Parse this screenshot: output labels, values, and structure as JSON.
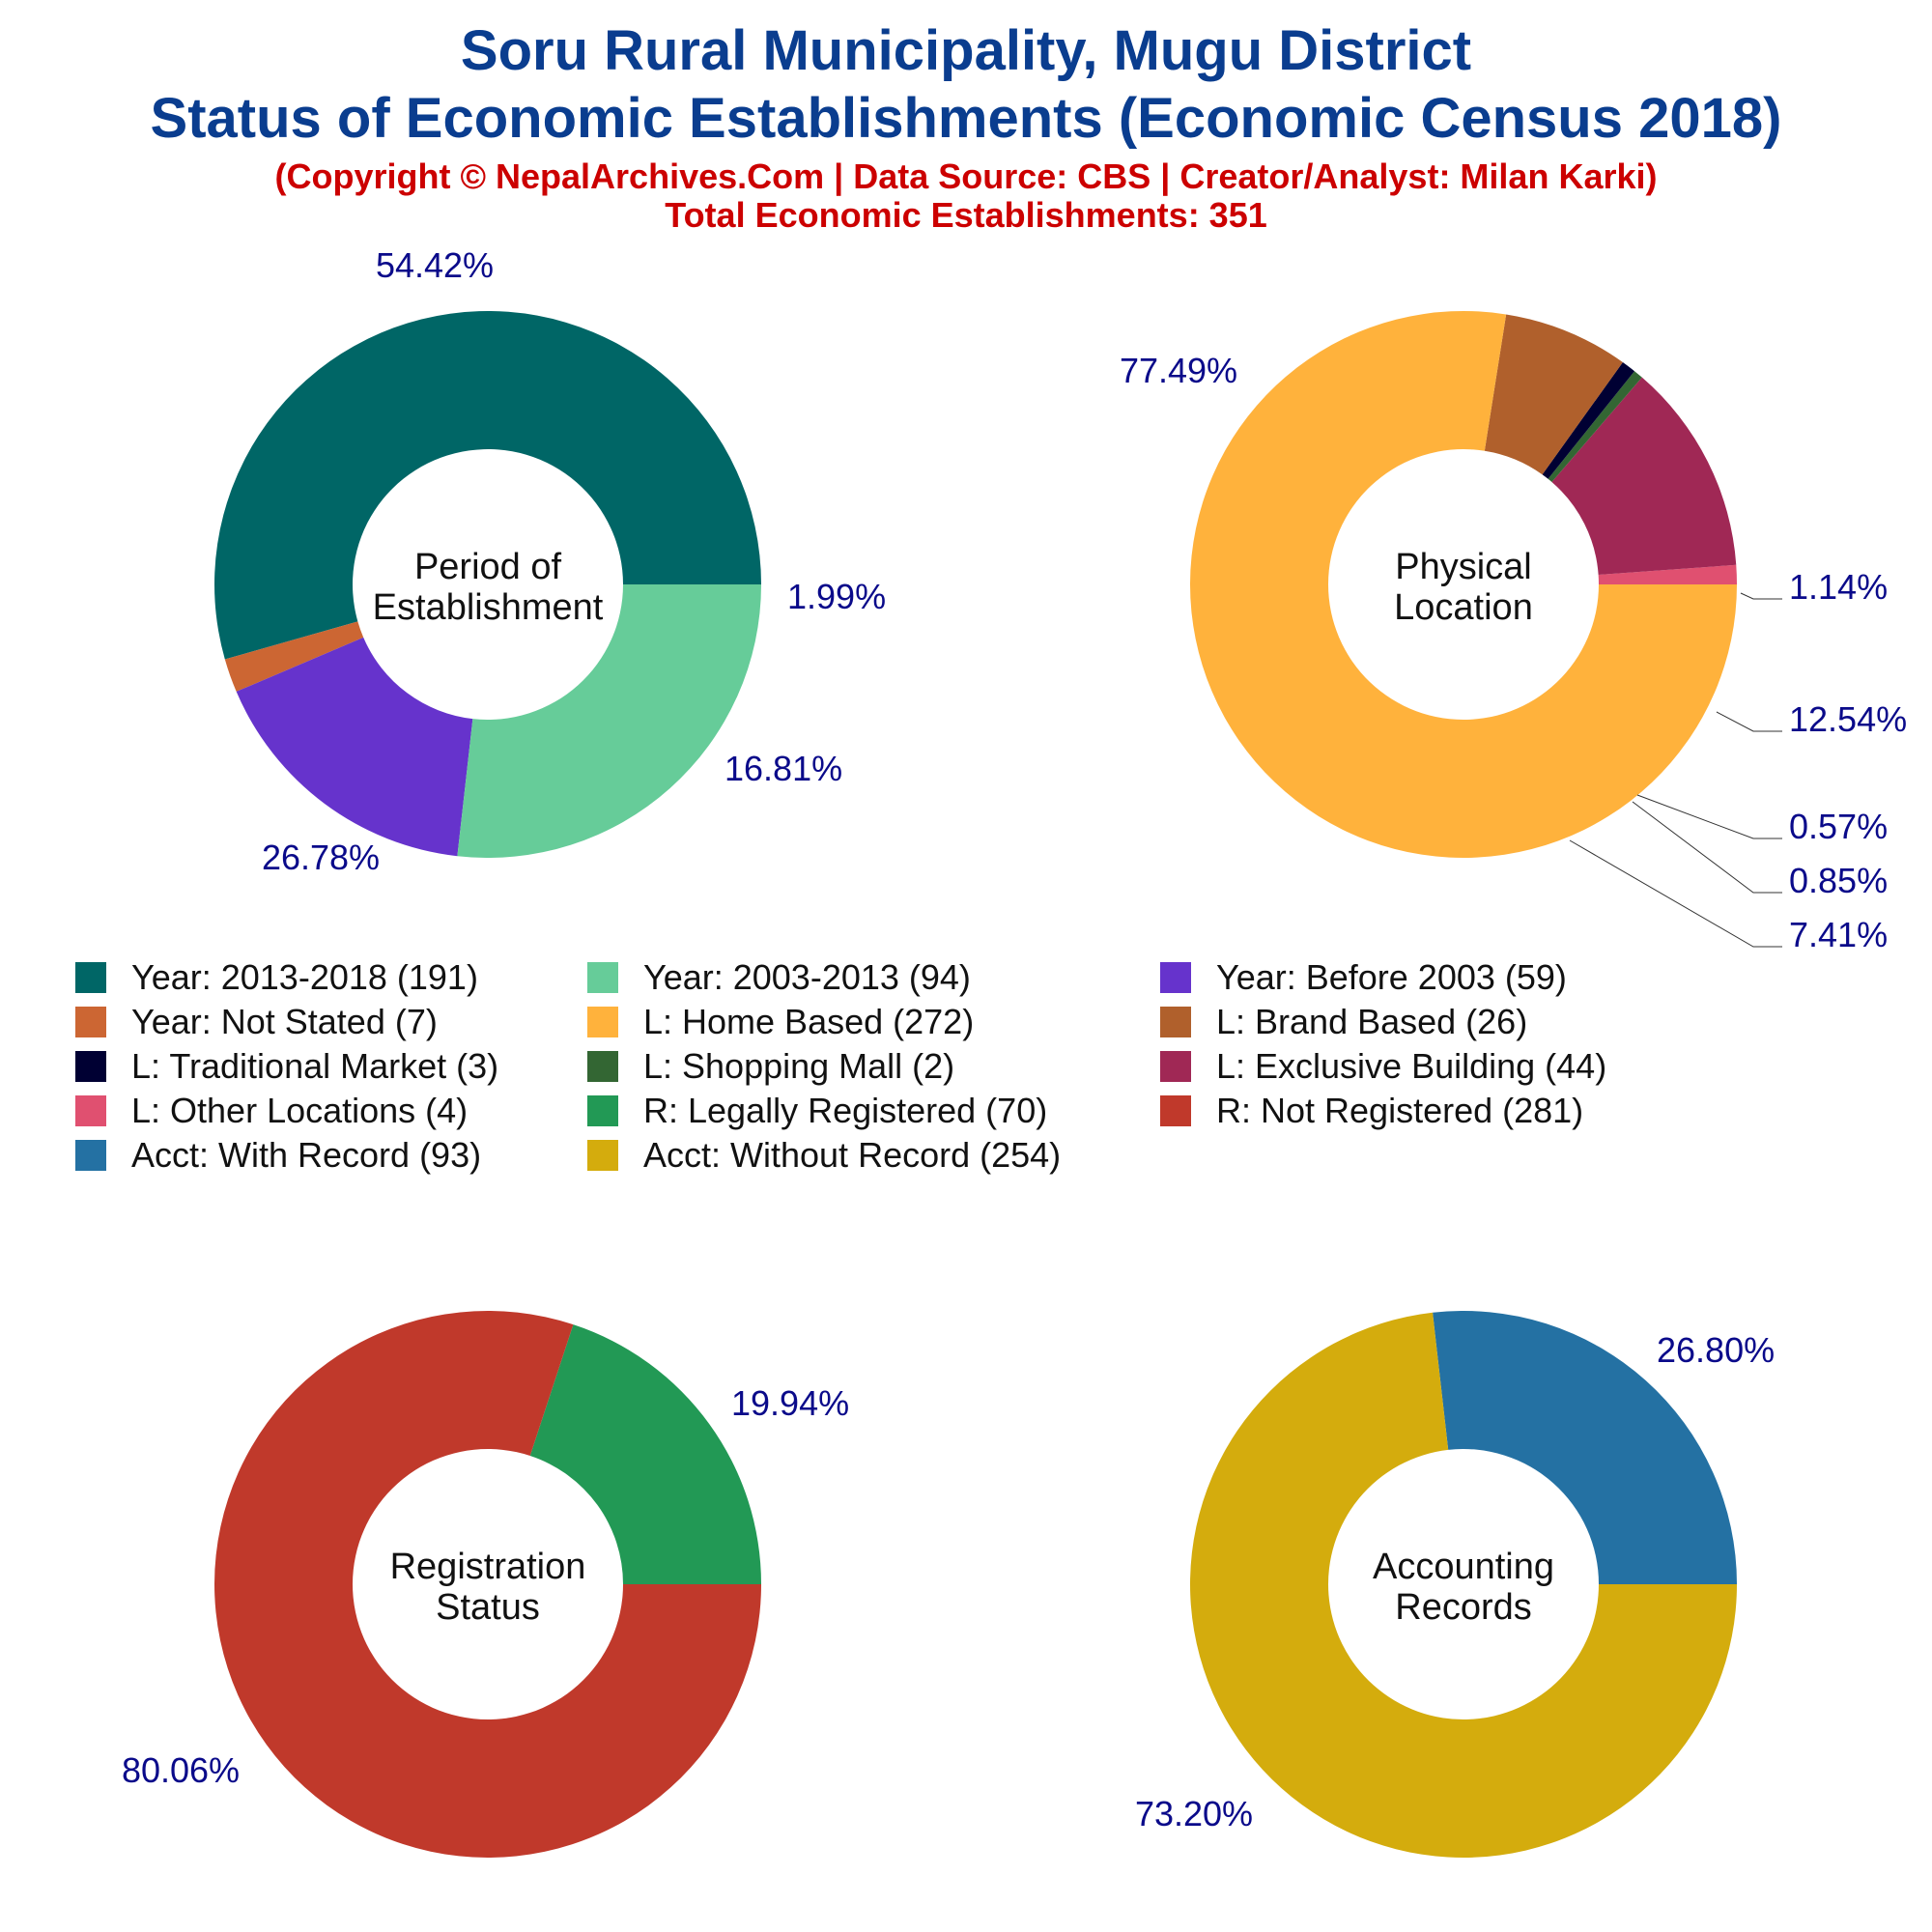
{
  "header": {
    "title_line1": "Soru Rural Municipality, Mugu District",
    "title_line2": "Status of Economic Establishments (Economic Census 2018)",
    "copyright": "(Copyright © NepalArchives.Com | Data Source: CBS | Creator/Analyst: Milan Karki)",
    "total": "Total Economic Establishments: 351"
  },
  "colors": {
    "title": "#0a3d8f",
    "subtitle": "#cc0000",
    "pct_label": "#0a0a8a"
  },
  "chart_data": [
    {
      "type": "pie",
      "donut": true,
      "center_label": [
        "Period of",
        "Establishment"
      ],
      "slices": [
        {
          "label": "Year: 2013-2018",
          "value": 191,
          "pct": "54.42%",
          "color": "#006666"
        },
        {
          "label": "Year: Not Stated",
          "value": 7,
          "pct": "1.99%",
          "color": "#cc6633"
        },
        {
          "label": "Year: Before 2003",
          "value": 59,
          "pct": "16.81%",
          "color": "#6633cc"
        },
        {
          "label": "Year: 2003-2013",
          "value": 94,
          "pct": "26.78%",
          "color": "#66cc99"
        }
      ]
    },
    {
      "type": "pie",
      "donut": true,
      "center_label": [
        "Physical",
        "Location"
      ],
      "slices": [
        {
          "label": "L: Other Locations",
          "value": 4,
          "pct": "1.14%",
          "color": "#e05070"
        },
        {
          "label": "L: Exclusive Building",
          "value": 44,
          "pct": "12.54%",
          "color": "#a02855"
        },
        {
          "label": "L: Shopping Mall",
          "value": 2,
          "pct": "0.57%",
          "color": "#336633"
        },
        {
          "label": "L: Traditional Market",
          "value": 3,
          "pct": "0.85%",
          "color": "#000033"
        },
        {
          "label": "L: Brand Based",
          "value": 26,
          "pct": "7.41%",
          "color": "#b0602c"
        },
        {
          "label": "L: Home Based",
          "value": 272,
          "pct": "77.49%",
          "color": "#ffb23c"
        }
      ]
    },
    {
      "type": "pie",
      "donut": true,
      "center_label": [
        "Registration",
        "Status"
      ],
      "slices": [
        {
          "label": "R: Legally Registered",
          "value": 70,
          "pct": "19.94%",
          "color": "#229955"
        },
        {
          "label": "R: Not Registered",
          "value": 281,
          "pct": "80.06%",
          "color": "#c0392b"
        }
      ]
    },
    {
      "type": "pie",
      "donut": true,
      "center_label": [
        "Accounting",
        "Records"
      ],
      "slices": [
        {
          "label": "Acct: With Record",
          "value": 93,
          "pct": "26.80%",
          "color": "#2471a3"
        },
        {
          "label": "Acct: Without Record",
          "value": 254,
          "pct": "73.20%",
          "color": "#d4ac0d"
        }
      ]
    }
  ],
  "legend": [
    {
      "text": "Year: 2013-2018 (191)",
      "color": "#006666"
    },
    {
      "text": "Year: 2003-2013 (94)",
      "color": "#66cc99"
    },
    {
      "text": "Year: Before 2003 (59)",
      "color": "#6633cc"
    },
    {
      "text": "Year: Not Stated (7)",
      "color": "#cc6633"
    },
    {
      "text": "L: Home Based (272)",
      "color": "#ffb23c"
    },
    {
      "text": "L: Brand Based (26)",
      "color": "#b0602c"
    },
    {
      "text": "L: Traditional Market (3)",
      "color": "#000033"
    },
    {
      "text": "L: Shopping Mall (2)",
      "color": "#336633"
    },
    {
      "text": "L: Exclusive Building (44)",
      "color": "#a02855"
    },
    {
      "text": "L: Other Locations (4)",
      "color": "#e05070"
    },
    {
      "text": "R: Legally Registered (70)",
      "color": "#229955"
    },
    {
      "text": "R: Not Registered (281)",
      "color": "#c0392b"
    },
    {
      "text": "Acct: With Record (93)",
      "color": "#2471a3"
    },
    {
      "text": "Acct: Without Record (254)",
      "color": "#d4ac0d"
    }
  ]
}
